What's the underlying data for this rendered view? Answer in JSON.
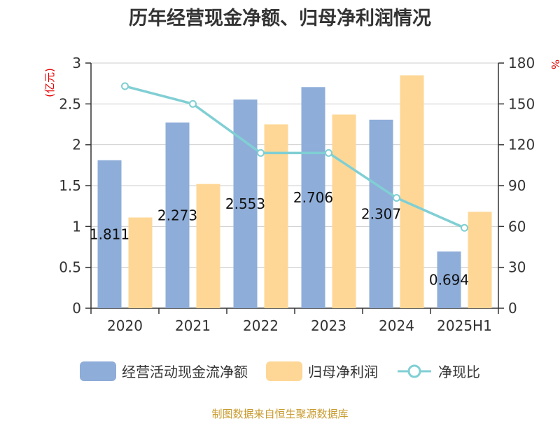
{
  "title": "历年经营现金净额、归母净利润情况",
  "footer": "制图数据来自恒生聚源数据库",
  "colors": {
    "ocf": "#8eadd9",
    "profit": "#fed796",
    "ratio": "#80cfd4",
    "unit": "#e60000"
  },
  "legend": [
    {
      "label": "经营活动现金流净额",
      "kind": "bar",
      "color_key": "ocf"
    },
    {
      "label": "归母净利润",
      "kind": "bar",
      "color_key": "profit"
    },
    {
      "label": "净现比",
      "kind": "line",
      "color_key": "ratio"
    }
  ],
  "chart_data": {
    "type": "bar",
    "title": "历年经营现金净额、归母净利润情况",
    "categories": [
      "2020",
      "2021",
      "2022",
      "2023",
      "2024",
      "2025H1"
    ],
    "y_left": {
      "label": "(亿元)",
      "ylim": [
        0,
        3
      ],
      "ticks": [
        "0",
        "0.5",
        "1",
        "1.5",
        "2",
        "2.5",
        "3"
      ]
    },
    "y_right": {
      "label": "%",
      "ylim": [
        0,
        180
      ],
      "ticks": [
        "0",
        "30",
        "60",
        "90",
        "120",
        "150",
        "180"
      ]
    },
    "series": [
      {
        "name": "经营活动现金流净额",
        "type": "bar",
        "axis": "left",
        "values": [
          1.811,
          2.273,
          2.553,
          2.706,
          2.307,
          0.694
        ],
        "labels": [
          "1.811",
          "2.273",
          "2.553",
          "2.706",
          "2.307",
          "0.694"
        ]
      },
      {
        "name": "归母净利润",
        "type": "bar",
        "axis": "left",
        "values": [
          1.11,
          1.52,
          2.25,
          2.37,
          2.85,
          1.18
        ]
      },
      {
        "name": "净现比",
        "type": "line",
        "axis": "right",
        "values": [
          163,
          150,
          114,
          114,
          81,
          59
        ]
      }
    ],
    "grid": true,
    "legend_position": "bottom"
  }
}
